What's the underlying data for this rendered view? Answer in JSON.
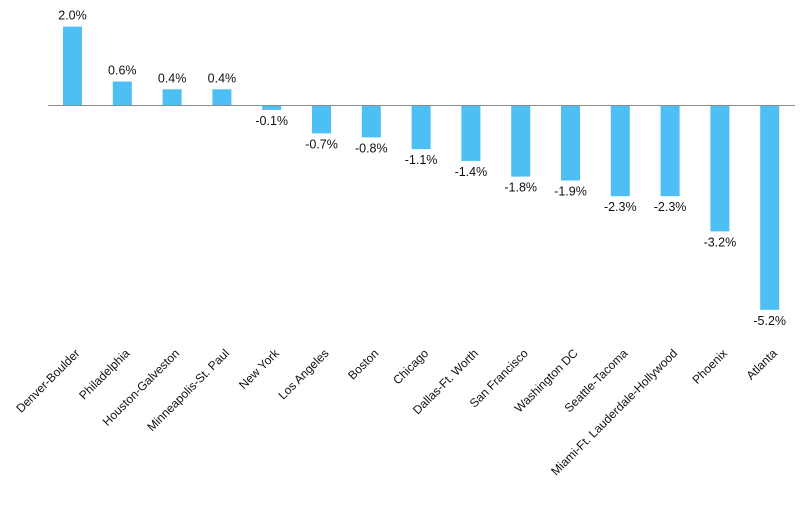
{
  "chart_data": {
    "type": "bar",
    "categories": [
      "Denver-Boulder",
      "Philadelphia",
      "Houston-Galveston",
      "Minneapolis-St. Paul",
      "New York",
      "Los Angeles",
      "Boston",
      "Chicago",
      "Dallas-Ft. Worth",
      "San Francisco",
      "Washington DC",
      "Seattle-Tacoma",
      "Miami-Ft. Lauderdale-Hollywood",
      "Phoenix",
      "Atlanta"
    ],
    "values": [
      2.0,
      0.6,
      0.4,
      0.4,
      -0.1,
      -0.7,
      -0.8,
      -1.1,
      -1.4,
      -1.8,
      -1.9,
      -2.3,
      -2.3,
      -3.2,
      -5.2
    ],
    "value_labels": [
      "2.0%",
      "0.6%",
      "0.4%",
      "0.4%",
      "-0.1%",
      "-0.7%",
      "-0.8%",
      "-1.1%",
      "-1.4%",
      "-1.8%",
      "-1.9%",
      "-2.3%",
      "-2.3%",
      "-3.2%",
      "-5.2%"
    ],
    "title": "",
    "xlabel": "",
    "ylabel": "",
    "ylim": [
      -5.2,
      2.0
    ],
    "grid": false,
    "bar_color": "#4DBFF5",
    "axis_color": "#8C8C8C"
  }
}
